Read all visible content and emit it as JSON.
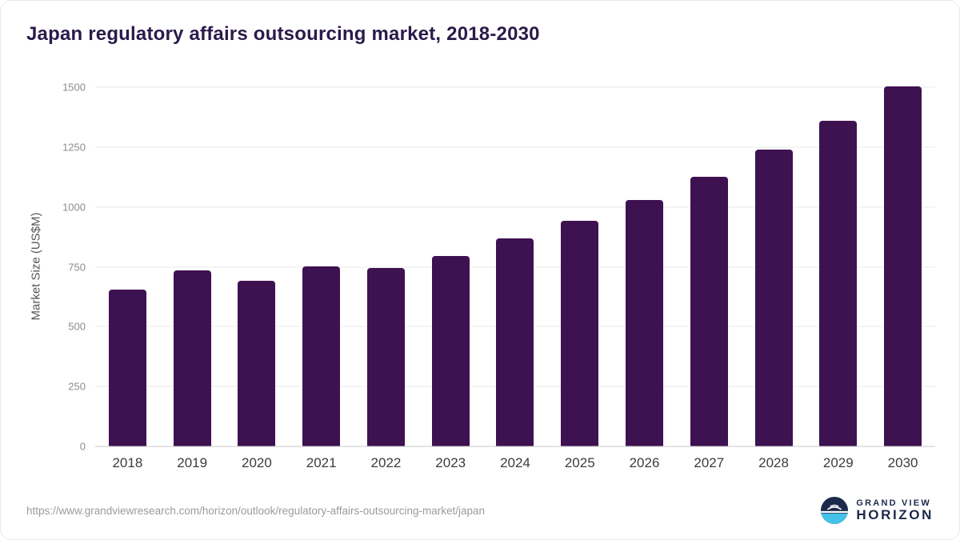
{
  "title": "Japan regulatory affairs outsourcing market, 2018-2030",
  "y_axis_title": "Market Size (US$M)",
  "footer": {
    "source_url": "https://www.grandviewresearch.com/horizon/outlook/regulatory-affairs-outsourcing-market/japan",
    "logo": {
      "line1": "GRAND VIEW",
      "line2": "HORIZON"
    }
  },
  "colors": {
    "bar": "#3e1151",
    "title": "#2a1a4a",
    "grid": "#e9e9e9",
    "axis_line": "#c9c9c9",
    "tick_label": "#8c8c8c",
    "x_label": "#3c3c3c",
    "logo_navy": "#1b2a4a",
    "logo_cyan": "#45c2e8"
  },
  "chart_data": {
    "type": "bar",
    "title": "Japan regulatory affairs outsourcing market, 2018-2030",
    "categories": [
      "2018",
      "2019",
      "2020",
      "2021",
      "2022",
      "2023",
      "2024",
      "2025",
      "2026",
      "2027",
      "2028",
      "2029",
      "2030"
    ],
    "values": [
      655,
      736,
      693,
      751,
      746,
      795,
      867,
      941,
      1029,
      1126,
      1238,
      1360,
      1502
    ],
    "xlabel": "",
    "ylabel": "Market Size (US$M)",
    "ylim": [
      0,
      1500
    ],
    "yticks": [
      0,
      250,
      500,
      750,
      1000,
      1250,
      1500
    ],
    "grid": true,
    "legend": false,
    "bar_color": "#3e1151"
  }
}
